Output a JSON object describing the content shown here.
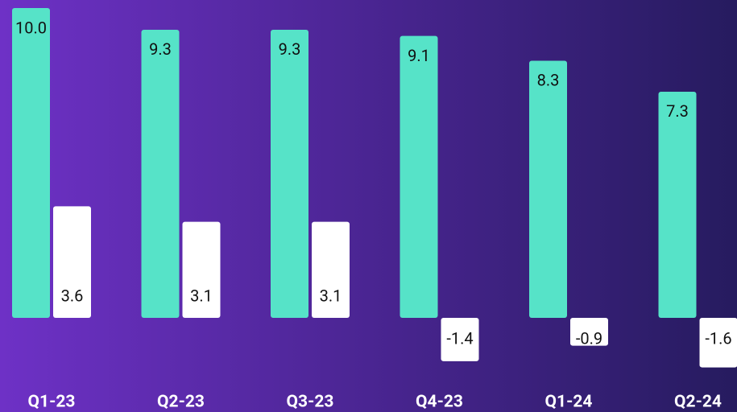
{
  "chart_data": {
    "type": "bar",
    "categories": [
      "Q1-23",
      "Q2-23",
      "Q3-23",
      "Q4-23",
      "Q1-24",
      "Q2-24"
    ],
    "series": [
      {
        "color": "#56e3c8",
        "values": [
          10.0,
          9.3,
          9.3,
          9.1,
          8.3,
          7.3
        ],
        "value_labels": [
          "10.0",
          "9.3",
          "9.3",
          "9.1",
          "8.3",
          "7.3"
        ]
      },
      {
        "color": "#ffffff",
        "values": [
          3.6,
          3.1,
          3.1,
          -1.4,
          -0.9,
          -1.6
        ],
        "value_labels": [
          "3.6",
          "3.1",
          "3.1",
          "-1.4",
          "-0.9",
          "-1.6"
        ]
      }
    ],
    "ylim": [
      -3.04,
      10.26
    ]
  }
}
